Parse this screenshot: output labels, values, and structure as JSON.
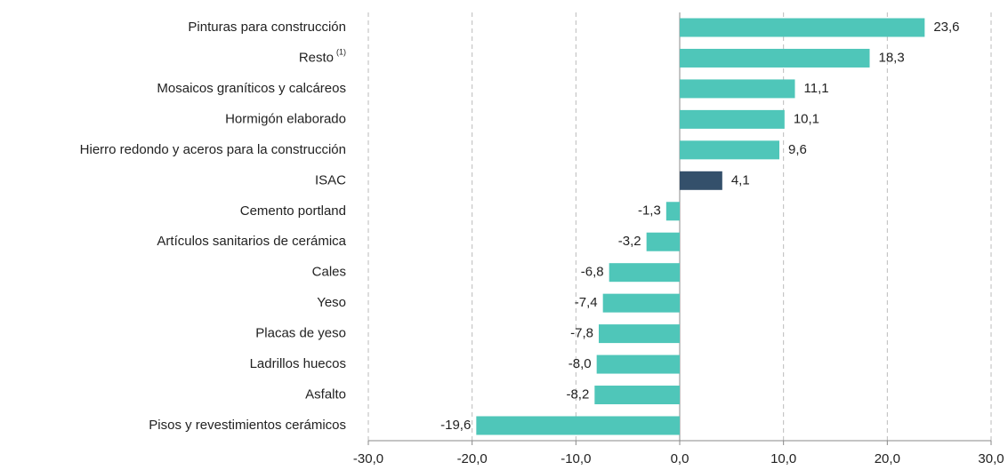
{
  "chart_data": {
    "type": "barh",
    "categories": [
      "Pinturas para construcción",
      "Resto",
      "Mosaicos graníticos y calcáreos",
      "Hormigón elaborado",
      "Hierro redondo y aceros para la construcción",
      "ISAC",
      "Cemento portland",
      "Artículos sanitarios de cerámica",
      "Cales",
      "Yeso",
      "Placas de yeso",
      "Ladrillos huecos",
      "Asfalto",
      "Pisos y revestimientos cerámicos"
    ],
    "category_superscripts": [
      null,
      "(1)",
      null,
      null,
      null,
      null,
      null,
      null,
      null,
      null,
      null,
      null,
      null,
      null
    ],
    "values": [
      23.6,
      18.3,
      11.1,
      10.1,
      9.6,
      4.1,
      -1.3,
      -3.2,
      -6.8,
      -7.4,
      -7.8,
      -8.0,
      -8.2,
      -19.6
    ],
    "value_labels": [
      "23,6",
      "18,3",
      "11,1",
      "10,1",
      "9,6",
      "4,1",
      "-1,3",
      "-3,2",
      "-6,8",
      "-7,4",
      "-7,8",
      "-8,0",
      "-8,2",
      "-19,6"
    ],
    "colors": [
      "#4fc6b9",
      "#4fc6b9",
      "#4fc6b9",
      "#4fc6b9",
      "#4fc6b9",
      "#34506b",
      "#4fc6b9",
      "#4fc6b9",
      "#4fc6b9",
      "#4fc6b9",
      "#4fc6b9",
      "#4fc6b9",
      "#4fc6b9",
      "#4fc6b9"
    ],
    "xlim": [
      -30,
      30
    ],
    "xticks": [
      {
        "value": -30,
        "label": "-30,0"
      },
      {
        "value": -20,
        "label": "-20,0"
      },
      {
        "value": -10,
        "label": "-10,0"
      },
      {
        "value": 0,
        "label": "0,0"
      },
      {
        "value": 10,
        "label": "10,0"
      },
      {
        "value": 20,
        "label": "20,0"
      },
      {
        "value": 30,
        "label": "30,0"
      }
    ],
    "grid": true
  }
}
